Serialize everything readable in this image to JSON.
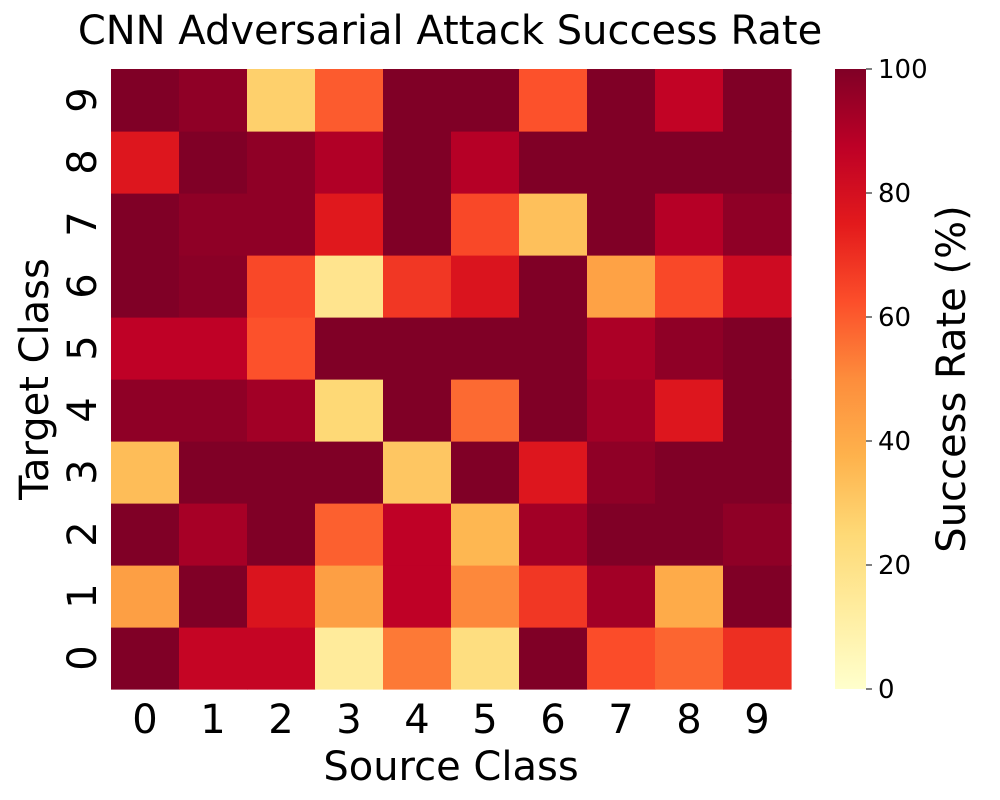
{
  "chart_data": {
    "type": "heatmap",
    "title": "CNN Adversarial Attack Success Rate",
    "xlabel": "Source Class",
    "ylabel": "Target Class",
    "x_categories": [
      "0",
      "1",
      "2",
      "3",
      "4",
      "5",
      "6",
      "7",
      "8",
      "9"
    ],
    "y_categories": [
      "0",
      "1",
      "2",
      "3",
      "4",
      "5",
      "6",
      "7",
      "8",
      "9"
    ],
    "y_order": "bottom-to-top",
    "values": [
      [
        100,
        85,
        85,
        14,
        54,
        22,
        100,
        63,
        58,
        70
      ],
      [
        44,
        100,
        78,
        44,
        87,
        51,
        68,
        93,
        40,
        100
      ],
      [
        100,
        92,
        100,
        59,
        87,
        36,
        93,
        100,
        100,
        97
      ],
      [
        34,
        100,
        100,
        100,
        31,
        100,
        77,
        97,
        100,
        100
      ],
      [
        97,
        97,
        93,
        25,
        100,
        57,
        100,
        93,
        77,
        100
      ],
      [
        87,
        87,
        62,
        100,
        100,
        100,
        100,
        91,
        97,
        100
      ],
      [
        100,
        98,
        64,
        18,
        68,
        78,
        100,
        43,
        64,
        82
      ],
      [
        100,
        97,
        97,
        76,
        100,
        64,
        33,
        100,
        89,
        97
      ],
      [
        77,
        100,
        97,
        90,
        100,
        89,
        100,
        100,
        100,
        100
      ],
      [
        100,
        97,
        28,
        60,
        100,
        100,
        62,
        100,
        86,
        100
      ]
    ],
    "colorbar": {
      "label": "Success Rate (%)",
      "range": [
        0,
        100
      ],
      "ticks": [
        0,
        20,
        40,
        60,
        80,
        100
      ],
      "colormap": "YlOrRd",
      "colormap_stops": [
        "#ffffcc",
        "#ffeda0",
        "#fed976",
        "#feb24c",
        "#fd8d3c",
        "#fc4e2a",
        "#e31a1c",
        "#bd0026",
        "#800026"
      ]
    }
  }
}
